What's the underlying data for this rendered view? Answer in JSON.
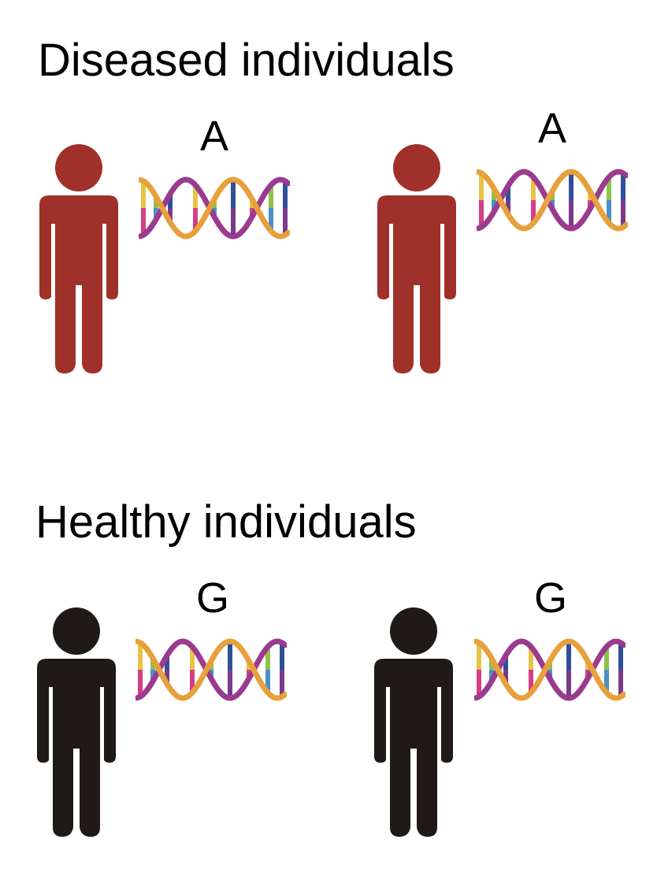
{
  "groups": [
    {
      "title": "Diseased individuals",
      "color": "#a0312a",
      "individuals": [
        {
          "allele": "A"
        },
        {
          "allele": "A"
        }
      ]
    },
    {
      "title": "Healthy individuals",
      "color": "#1f1a17",
      "individuals": [
        {
          "allele": "G"
        },
        {
          "allele": "G"
        }
      ]
    }
  ],
  "icons": {
    "person": "person-icon",
    "dna": "dna-helix-icon"
  },
  "dna_colors": {
    "strand_a": "#e7a03c",
    "strand_b": "#9a3b8f",
    "rungs": [
      "#e8c444",
      "#d43f86",
      "#8fc04a",
      "#4a8fc9",
      "#2f4f9a",
      "#7a3a8a"
    ]
  }
}
